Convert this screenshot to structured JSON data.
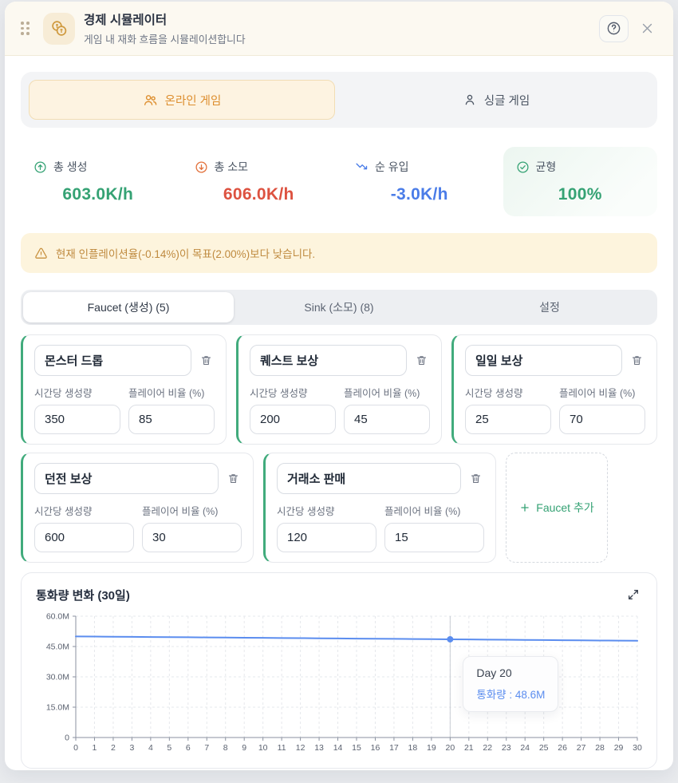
{
  "header": {
    "title": "경제 시뮬레이터",
    "subtitle": "게임 내 재화 흐름을 시뮬레이션합니다"
  },
  "mode_selector": {
    "options": [
      {
        "label": "온라인 게임",
        "icon": "users-icon",
        "active": true
      },
      {
        "label": "싱글 게임",
        "icon": "user-icon",
        "active": false
      }
    ]
  },
  "stats": [
    {
      "label": "총 생성",
      "value": "603.0K/h",
      "icon": "arrow-up-circle-icon",
      "color": "#35a274"
    },
    {
      "label": "총 소모",
      "value": "606.0K/h",
      "icon": "arrow-down-circle-icon",
      "color": "#dd5240"
    },
    {
      "label": "순 유입",
      "value": "-3.0K/h",
      "icon": "trending-down-icon",
      "color": "#4a7ce8"
    },
    {
      "label": "균형",
      "value": "100%",
      "icon": "check-circle-icon",
      "color": "#35a274",
      "highlighted": true
    }
  ],
  "warning": {
    "icon": "warning-triangle-icon",
    "text": "현재 인플레이션율(-0.14%)이 목표(2.00%)보다 낮습니다."
  },
  "tabs": [
    {
      "label": "Faucet (생성) (5)",
      "active": true
    },
    {
      "label": "Sink (소모) (8)",
      "active": false
    },
    {
      "label": "설정",
      "active": false
    }
  ],
  "faucet_section": {
    "field_labels": {
      "rate": "시간당 생성량",
      "ratio": "플레이어 비율 (%)"
    },
    "items": [
      {
        "name": "몬스터 드롭",
        "rate": "350",
        "ratio": "85"
      },
      {
        "name": "퀘스트 보상",
        "rate": "200",
        "ratio": "45"
      },
      {
        "name": "일일 보상",
        "rate": "25",
        "ratio": "70"
      },
      {
        "name": "던전 보상",
        "rate": "600",
        "ratio": "30"
      },
      {
        "name": "거래소 판매",
        "rate": "120",
        "ratio": "15"
      }
    ],
    "add_label": "Faucet 추가"
  },
  "chart_card": {
    "title": "통화량 변화 (30일)"
  },
  "chart_data": {
    "type": "line",
    "title": "통화량 변화 (30일)",
    "xlabel": "",
    "ylabel": "",
    "unit": "M",
    "x": [
      0,
      1,
      2,
      3,
      4,
      5,
      6,
      7,
      8,
      9,
      10,
      11,
      12,
      13,
      14,
      15,
      16,
      17,
      18,
      19,
      20,
      21,
      22,
      23,
      24,
      25,
      26,
      27,
      28,
      29,
      30
    ],
    "series": [
      {
        "name": "통화량",
        "color": "#5b8def",
        "values": [
          50.0,
          49.93,
          49.86,
          49.78,
          49.71,
          49.64,
          49.57,
          49.5,
          49.42,
          49.35,
          49.28,
          49.21,
          49.14,
          49.06,
          48.99,
          48.92,
          48.85,
          48.78,
          48.7,
          48.63,
          48.56,
          48.49,
          48.42,
          48.34,
          48.27,
          48.2,
          48.13,
          48.06,
          47.98,
          47.91,
          47.84
        ]
      }
    ],
    "ylim": [
      0,
      60
    ],
    "yticks": [
      0,
      15,
      30,
      45,
      60
    ],
    "ytick_labels": [
      "0",
      "15.0M",
      "30.0M",
      "45.0M",
      "60.0M"
    ],
    "grid": true,
    "legend_position": "none",
    "tooltip": {
      "x": 20,
      "y": 48.56,
      "title": "Day 20",
      "value_label": "통화량 : 48.6M"
    }
  },
  "colors": {
    "accent_green": "#35a274",
    "accent_red": "#dd5240",
    "accent_blue": "#4a7ce8",
    "accent_amber": "#dd8e2e",
    "warning_bg": "#fdf4dd",
    "header_bg": "#fcf9f1",
    "line": "#5b8def"
  }
}
